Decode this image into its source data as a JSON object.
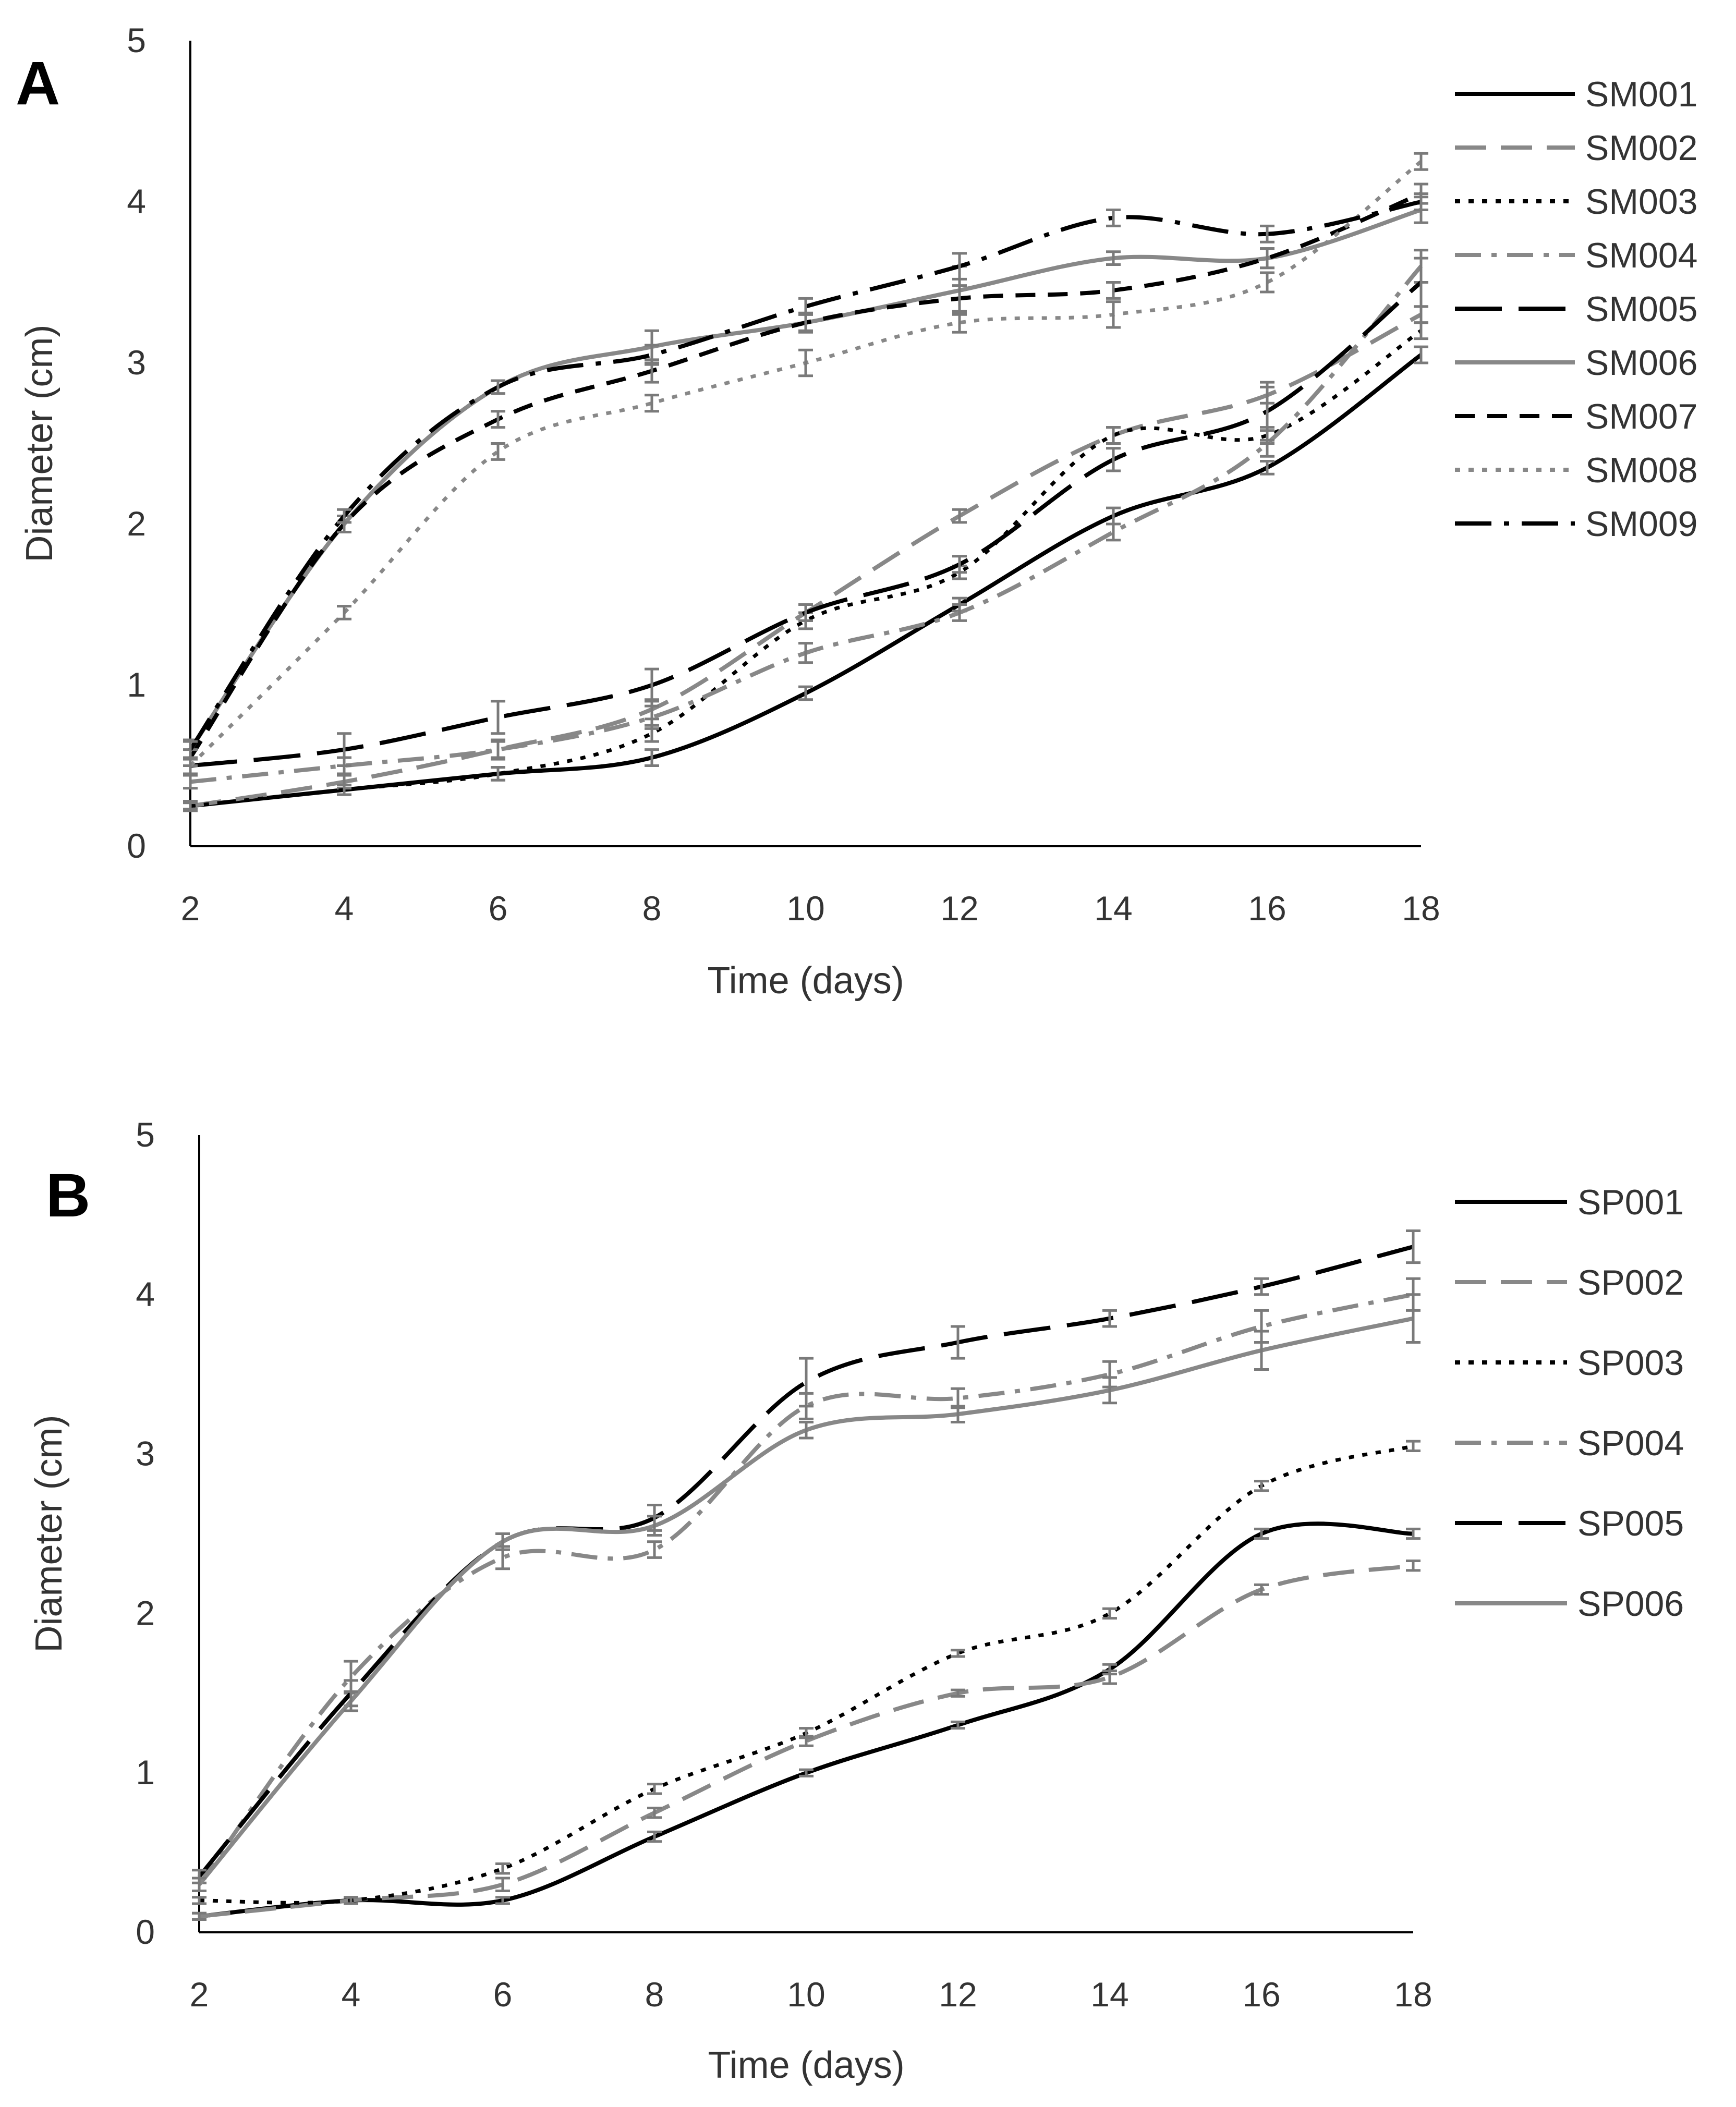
{
  "chart_data": [
    {
      "type": "line",
      "panel": "A",
      "xlabel": "Time (days)",
      "ylabel": "Diameter (cm)",
      "xlim": [
        2,
        18
      ],
      "ylim": [
        0,
        5
      ],
      "x": [
        2,
        4,
        6,
        8,
        10,
        12,
        14,
        16,
        18
      ],
      "yticks": [
        0,
        1,
        2,
        3,
        4,
        5
      ],
      "series": [
        {
          "name": "SM001",
          "color": "#000000",
          "dash": "solid",
          "values": [
            0.25,
            0.35,
            0.45,
            0.55,
            0.95,
            1.5,
            2.05,
            2.35,
            3.05
          ],
          "errors": [
            0.02,
            0.03,
            0.04,
            0.05,
            0.04,
            0.04,
            0.05,
            0.04,
            0.05
          ]
        },
        {
          "name": "SM002",
          "color": "#888888",
          "dash": "dash",
          "values": [
            0.25,
            0.4,
            0.6,
            0.85,
            1.45,
            2.05,
            2.55,
            2.8,
            3.3
          ],
          "errors": [
            0.03,
            0.04,
            0.05,
            0.06,
            0.05,
            0.04,
            0.05,
            0.05,
            0.05
          ]
        },
        {
          "name": "SM003",
          "color": "#000000",
          "dash": "dot",
          "values": [
            0.25,
            0.35,
            0.45,
            0.7,
            1.4,
            1.7,
            2.55,
            2.55,
            3.2
          ],
          "errors": [
            0.02,
            0.03,
            0.04,
            0.05,
            0.05,
            0.04,
            0.05,
            0.05,
            0.05
          ]
        },
        {
          "name": "SM004",
          "color": "#888888",
          "dash": "dashdot",
          "values": [
            0.4,
            0.5,
            0.6,
            0.8,
            1.2,
            1.45,
            1.95,
            2.5,
            3.6
          ],
          "errors": [
            0.04,
            0.05,
            0.06,
            0.07,
            0.06,
            0.05,
            0.05,
            0.08,
            0.1
          ]
        },
        {
          "name": "SM005",
          "color": "#000000",
          "dash": "longdash",
          "values": [
            0.5,
            0.6,
            0.8,
            1.0,
            1.45,
            1.75,
            2.4,
            2.7,
            3.5
          ],
          "errors": [
            0.05,
            0.1,
            0.1,
            0.1,
            0.05,
            0.05,
            0.07,
            0.18,
            0.15
          ]
        },
        {
          "name": "SM006",
          "color": "#888888",
          "dash": "solid",
          "values": [
            0.6,
            2.0,
            2.85,
            3.1,
            3.25,
            3.45,
            3.65,
            3.65,
            3.95
          ],
          "errors": [
            0.06,
            0.05,
            0.04,
            0.1,
            0.05,
            0.15,
            0.04,
            0.06,
            0.08
          ]
        },
        {
          "name": "SM007",
          "color": "#000000",
          "dash": "shortdash",
          "values": [
            0.55,
            2.0,
            2.65,
            2.95,
            3.25,
            3.4,
            3.45,
            3.65,
            4.05
          ],
          "errors": [
            0.05,
            0.05,
            0.05,
            0.07,
            0.06,
            0.08,
            0.05,
            0.06,
            0.06
          ]
        },
        {
          "name": "SM008",
          "color": "#888888",
          "dash": "dot",
          "values": [
            0.5,
            1.45,
            2.45,
            2.75,
            3.0,
            3.25,
            3.3,
            3.5,
            4.25
          ],
          "errors": [
            0.05,
            0.04,
            0.05,
            0.05,
            0.08,
            0.06,
            0.08,
            0.06,
            0.05
          ]
        },
        {
          "name": "SM009",
          "color": "#000000",
          "dash": "longdashdot",
          "values": [
            0.6,
            2.05,
            2.85,
            3.05,
            3.35,
            3.6,
            3.9,
            3.8,
            4.0
          ],
          "errors": [
            0.05,
            0.04,
            0.04,
            0.06,
            0.05,
            0.08,
            0.05,
            0.05,
            0.05
          ]
        }
      ]
    },
    {
      "type": "line",
      "panel": "B",
      "xlabel": "Time (days)",
      "ylabel": "Diameter (cm)",
      "xlim": [
        2,
        18
      ],
      "ylim": [
        0,
        5
      ],
      "x": [
        2,
        4,
        6,
        8,
        10,
        12,
        14,
        16,
        18
      ],
      "yticks": [
        0,
        1,
        2,
        3,
        4,
        5
      ],
      "series": [
        {
          "name": "SP001",
          "color": "#000000",
          "dash": "solid",
          "values": [
            0.1,
            0.2,
            0.2,
            0.6,
            1.0,
            1.3,
            1.65,
            2.5,
            2.5
          ],
          "errors": [
            0.02,
            0.02,
            0.02,
            0.03,
            0.02,
            0.02,
            0.03,
            0.03,
            0.03
          ]
        },
        {
          "name": "SP002",
          "color": "#888888",
          "dash": "dash",
          "values": [
            0.1,
            0.2,
            0.3,
            0.75,
            1.2,
            1.5,
            1.6,
            2.15,
            2.3
          ],
          "errors": [
            0.02,
            0.02,
            0.04,
            0.03,
            0.03,
            0.02,
            0.04,
            0.03,
            0.03
          ]
        },
        {
          "name": "SP003",
          "color": "#000000",
          "dash": "dot",
          "values": [
            0.2,
            0.2,
            0.4,
            0.9,
            1.25,
            1.75,
            2.0,
            2.8,
            3.05
          ],
          "errors": [
            0.02,
            0.02,
            0.03,
            0.03,
            0.03,
            0.02,
            0.03,
            0.03,
            0.03
          ]
        },
        {
          "name": "SP004",
          "color": "#888888",
          "dash": "dashdot",
          "values": [
            0.3,
            1.6,
            2.35,
            2.4,
            3.3,
            3.35,
            3.5,
            3.8,
            4.0
          ],
          "errors": [
            0.04,
            0.1,
            0.07,
            0.05,
            0.08,
            0.06,
            0.08,
            0.1,
            0.1
          ]
        },
        {
          "name": "SP005",
          "color": "#000000",
          "dash": "longdash",
          "values": [
            0.35,
            1.5,
            2.45,
            2.6,
            3.45,
            3.7,
            3.85,
            4.05,
            4.3
          ],
          "errors": [
            0.04,
            0.08,
            0.05,
            0.08,
            0.15,
            0.1,
            0.05,
            0.05,
            0.1
          ]
        },
        {
          "name": "SP006",
          "color": "#888888",
          "dash": "solid",
          "values": [
            0.3,
            1.45,
            2.45,
            2.55,
            3.15,
            3.25,
            3.4,
            3.65,
            3.85
          ],
          "errors": [
            0.04,
            0.06,
            0.05,
            0.06,
            0.05,
            0.05,
            0.08,
            0.12,
            0.15
          ]
        }
      ]
    }
  ]
}
